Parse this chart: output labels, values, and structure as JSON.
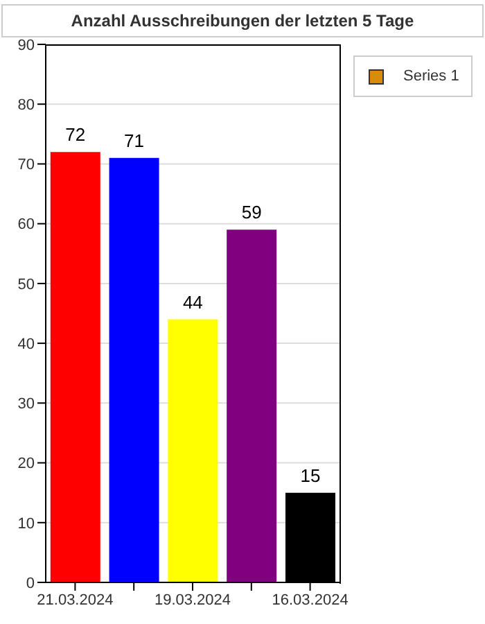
{
  "chart_data": {
    "type": "bar",
    "title": "Anzahl Ausschreibungen der letzten 5 Tage",
    "categories": [
      "21.03.2024",
      null,
      "19.03.2024",
      null,
      "16.03.2024"
    ],
    "series": [
      {
        "name": "Series 1",
        "color": "#d98c0a",
        "colors": [
          "#ff0000",
          "#0000ff",
          "#ffff00",
          "#800080",
          "#000000"
        ],
        "values": [
          72,
          71,
          44,
          59,
          15
        ]
      }
    ],
    "ylim": [
      0,
      90
    ],
    "yticks": [
      0,
      10,
      20,
      30,
      40,
      50,
      60,
      70,
      80,
      90
    ],
    "grid": "y",
    "legend": "top right",
    "data_labels": true
  }
}
